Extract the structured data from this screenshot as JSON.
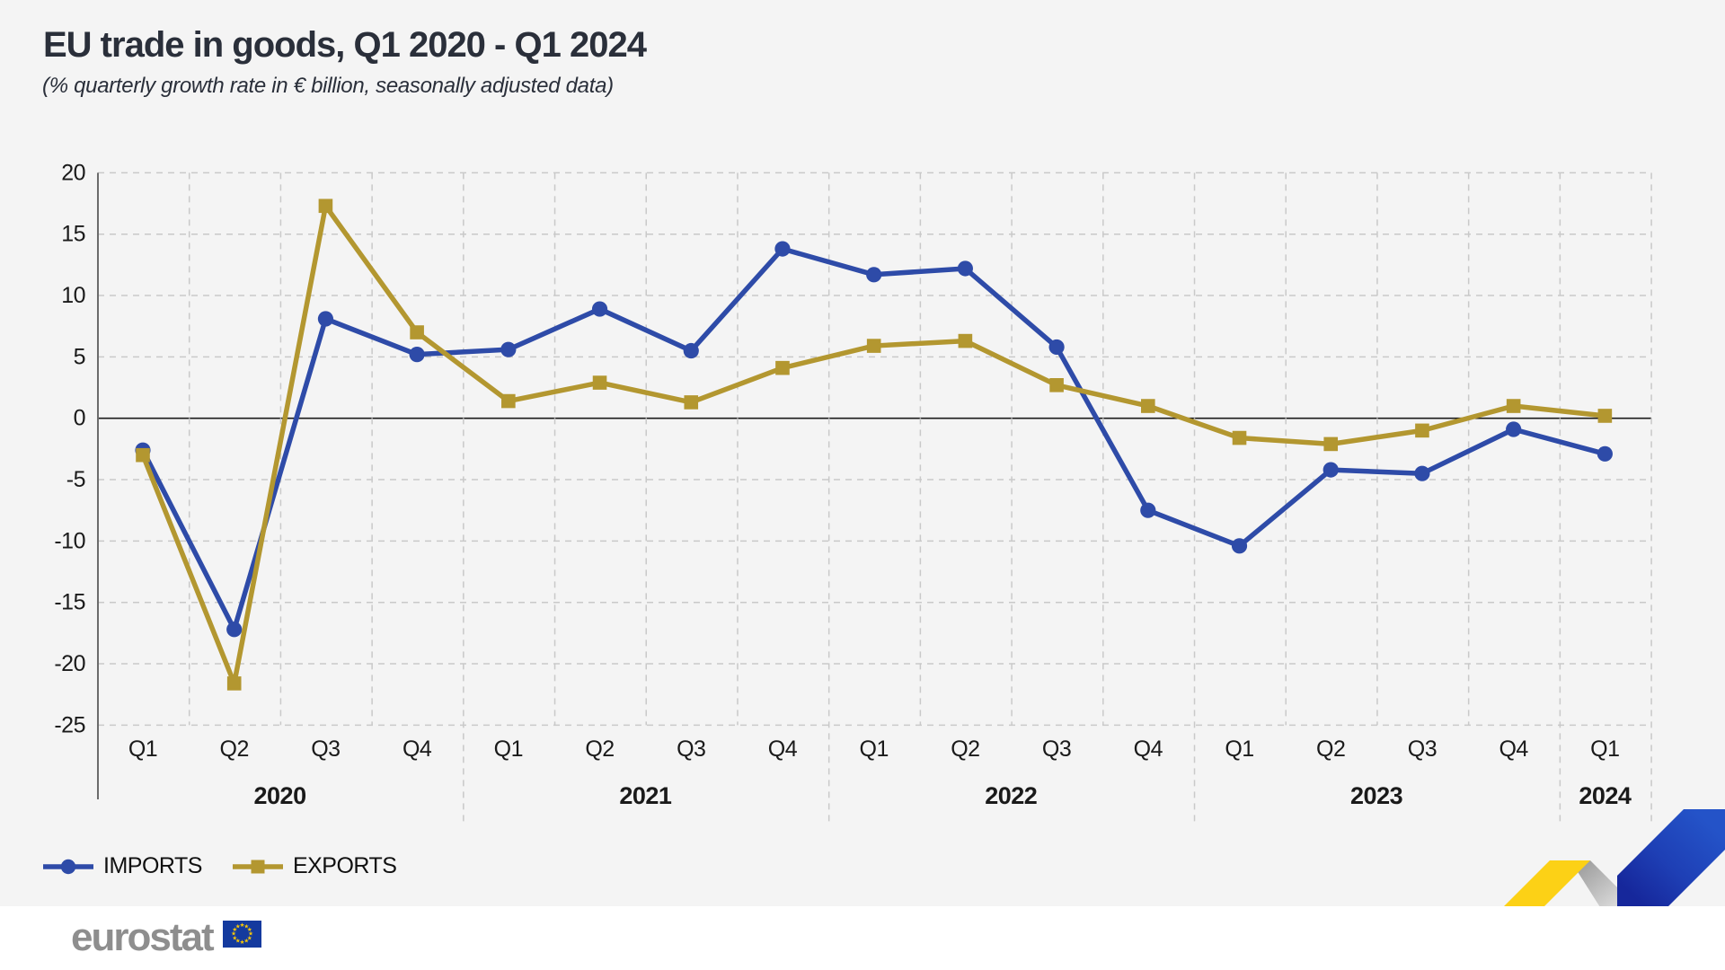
{
  "header": {
    "title": "EU trade in goods, Q1 2020 - Q1 2024",
    "subtitle": "(% quarterly growth rate in € billion, seasonally adjusted data)"
  },
  "footer": {
    "logo_text": "eurostat"
  },
  "chart_data": {
    "type": "line",
    "title": "EU trade in goods, Q1 2020 - Q1 2024",
    "subtitle": "(% quarterly growth rate in € billion, seasonally adjusted data)",
    "categories": [
      "Q1 2020",
      "Q2 2020",
      "Q3 2020",
      "Q4 2020",
      "Q1 2021",
      "Q2 2021",
      "Q3 2021",
      "Q4 2021",
      "Q1 2022",
      "Q2 2022",
      "Q3 2022",
      "Q4 2022",
      "Q1 2023",
      "Q2 2023",
      "Q3 2023",
      "Q4 2023",
      "Q1 2024"
    ],
    "x_tick_labels": [
      "Q1",
      "Q2",
      "Q3",
      "Q4",
      "Q1",
      "Q2",
      "Q3",
      "Q4",
      "Q1",
      "Q2",
      "Q3",
      "Q4",
      "Q1",
      "Q2",
      "Q3",
      "Q4",
      "Q1"
    ],
    "year_groups": [
      {
        "label": "2020",
        "from": 0,
        "to": 3
      },
      {
        "label": "2021",
        "from": 4,
        "to": 7
      },
      {
        "label": "2022",
        "from": 8,
        "to": 11
      },
      {
        "label": "2023",
        "from": 12,
        "to": 15
      },
      {
        "label": "2024",
        "from": 16,
        "to": 16
      }
    ],
    "series": [
      {
        "name": "IMPORTS",
        "marker": "circle",
        "color": "#2e4ba8",
        "values": [
          -2.6,
          -17.2,
          8.1,
          5.2,
          5.6,
          8.9,
          5.5,
          13.8,
          11.7,
          12.2,
          5.8,
          -7.5,
          -10.4,
          -4.2,
          -4.5,
          -0.9,
          -2.9
        ]
      },
      {
        "name": "EXPORTS",
        "marker": "square",
        "color": "#b39730",
        "values": [
          -3.0,
          -21.6,
          17.3,
          7.0,
          1.4,
          2.9,
          1.3,
          4.1,
          5.9,
          6.3,
          2.7,
          1.0,
          -1.6,
          -2.1,
          -1.0,
          1.0,
          0.2
        ]
      }
    ],
    "ylim": [
      -25,
      20
    ],
    "yticks": [
      20,
      15,
      10,
      5,
      0,
      -5,
      -10,
      -15,
      -20,
      -25
    ],
    "zero_line": true,
    "grid": "dashed",
    "legend_position": "bottom-left"
  },
  "colors": {
    "background": "#f4f4f4",
    "footer_background": "#ffffff",
    "title_text": "#2a2f3a",
    "tick_text": "#1a1a1a",
    "grid": "#c9c9c9",
    "zero_line": "#1a1a1a",
    "axis": "#6b6b6b",
    "imports": "#2e4ba8",
    "exports": "#b39730",
    "eurostat_gray": "#8e8e8e",
    "flag_blue": "#143a9e",
    "star_yellow": "#ffcc00",
    "ribbon_yellow": "#fcd116",
    "ribbon_gray": "#9a9a9a",
    "ribbon_blue": "#2453c8"
  }
}
